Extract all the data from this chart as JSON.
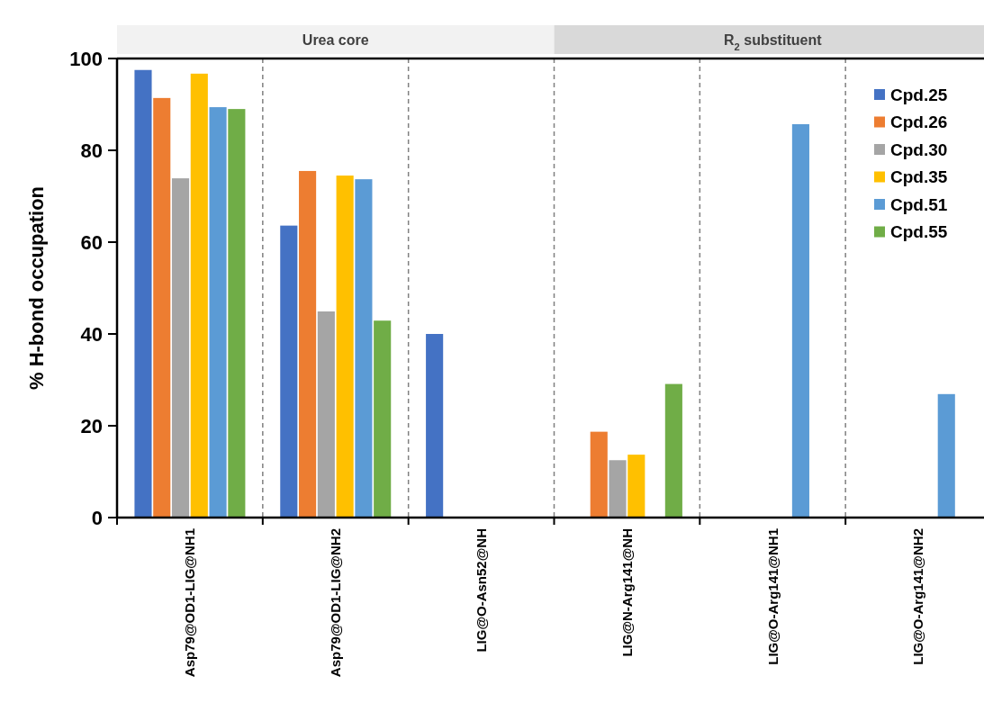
{
  "chart_data": {
    "type": "bar",
    "ylabel": "% H-bond occupation",
    "categories": [
      "Asp79@OD1-LIG@NH1",
      "Asp79@OD1-LIG@NH2",
      "LIG@O-Asn52@NH",
      "LIG@N-Arg141@NH",
      "LIG@O-Arg141@NH1",
      "LIG@O-Arg141@NH2"
    ],
    "series": [
      {
        "name": "Cpd.25",
        "color": "#4472c4",
        "values": [
          97.5,
          63.6,
          40.0,
          null,
          null,
          null
        ]
      },
      {
        "name": "Cpd.26",
        "color": "#ed7d31",
        "values": [
          91.4,
          75.5,
          null,
          18.7,
          null,
          null
        ]
      },
      {
        "name": "Cpd.30",
        "color": "#a5a5a5",
        "values": [
          73.9,
          44.9,
          null,
          12.5,
          null,
          null
        ]
      },
      {
        "name": "Cpd.35",
        "color": "#ffc000",
        "values": [
          96.7,
          74.5,
          null,
          13.7,
          null,
          null
        ]
      },
      {
        "name": "Cpd.51",
        "color": "#5b9bd5",
        "values": [
          89.4,
          73.7,
          null,
          null,
          85.7,
          26.9
        ]
      },
      {
        "name": "Cpd.55",
        "color": "#70ad47",
        "values": [
          89.0,
          42.9,
          null,
          29.1,
          null,
          null
        ]
      }
    ],
    "ylim": [
      0,
      100
    ],
    "yticks": [
      0,
      20,
      40,
      60,
      80,
      100
    ],
    "annotations": [
      "Urea core",
      "R$_{2}$ substituent"
    ],
    "grid": "x",
    "legend": "top right"
  }
}
